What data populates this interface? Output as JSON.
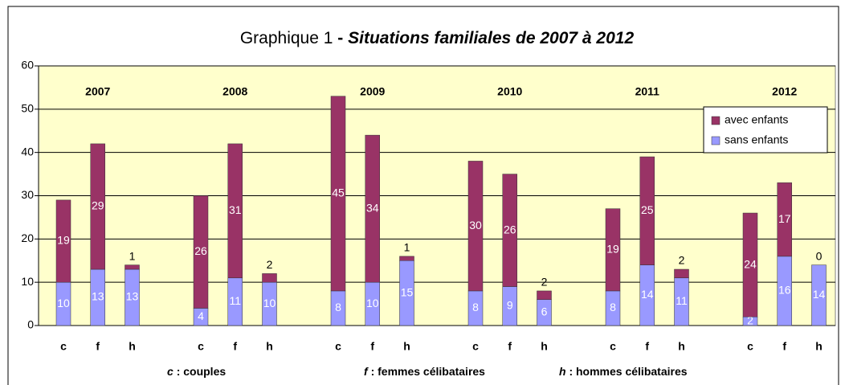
{
  "chart_data": {
    "type": "stacked-bar",
    "title": [
      "Graphique 1",
      "-",
      "Situations familiales de 2007 à 2012"
    ],
    "group_labels": [
      "2007",
      "2008",
      "2009",
      "2010",
      "2011",
      "2012"
    ],
    "categories": [
      "c",
      "f",
      "h",
      null,
      "c",
      "f",
      "h",
      null,
      "c",
      "f",
      "h",
      null,
      "c",
      "f",
      "h",
      null,
      "c",
      "f",
      "h",
      null,
      "c",
      "f",
      "h"
    ],
    "series": [
      {
        "name": "sans enfants",
        "color": "#9999ff",
        "values": [
          10,
          13,
          13,
          null,
          4,
          11,
          10,
          null,
          8,
          10,
          15,
          null,
          8,
          9,
          6,
          null,
          8,
          14,
          11,
          null,
          2,
          16,
          14
        ]
      },
      {
        "name": "avec enfants",
        "color": "#993366",
        "values": [
          19,
          29,
          1,
          null,
          26,
          31,
          2,
          null,
          45,
          34,
          1,
          null,
          30,
          26,
          2,
          null,
          19,
          25,
          2,
          null,
          24,
          17,
          0
        ]
      }
    ],
    "ylim": [
      0,
      60
    ],
    "yticks": [
      0,
      10,
      20,
      30,
      40,
      50,
      60
    ],
    "grid": true,
    "annotations": [
      {
        "key": "c",
        "text": ": couples"
      },
      {
        "key": "f",
        "text": ": femmes célibataires"
      },
      {
        "key": "h",
        "text": ": hommes célibataires"
      }
    ]
  }
}
